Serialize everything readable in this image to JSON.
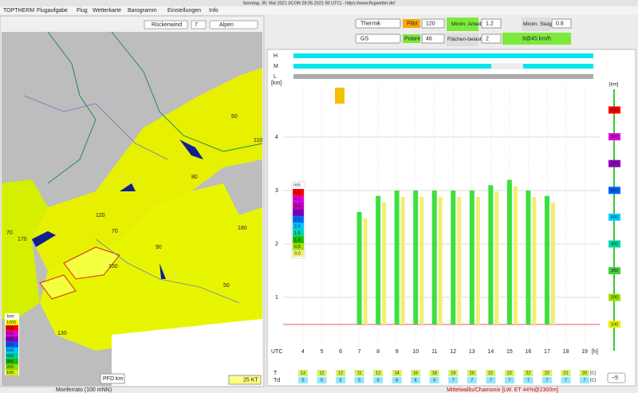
{
  "window_title": "Sonntag, 30. Mai 2021 (ICON 28.05.2021 00 UTC) - https://www.flugwetter.de/",
  "menu": [
    "TOPTHERM",
    "Flugaufgabe",
    "Flug",
    "Wetterkarte",
    "Barogramm",
    "Einstellungen",
    "Info"
  ],
  "map_panel": {
    "checkbox": "Rückenwind",
    "number": "7",
    "region": "Alpen",
    "map_labels": [
      "50",
      "110",
      "80",
      "120",
      "70",
      "170",
      "180",
      "150",
      "90",
      "50",
      "130",
      "70"
    ],
    "legend_unit": "km",
    "legend": [
      "1000",
      "900",
      "800",
      "700",
      "600",
      "500",
      "400",
      "300",
      "200",
      "100"
    ],
    "pfd": "PFD",
    "km_button": "km",
    "wind_scale": "25 KT",
    "status": "Monferrato (100 mNN)"
  },
  "forecast_panel": {
    "mode": "Thermik",
    "pilot": "Pilot",
    "pilot_value": "120",
    "min_work_label": "Minim. Arbeitsh.",
    "min_work": "1.2",
    "min_climb_label": "Minim. Steigen",
    "min_climb": "0.8",
    "glider": "GS",
    "polar": "Polare",
    "polar_value": "46",
    "wing_loading_label": "Flächen-belastung",
    "wing_loading": "2",
    "best_glide": "9@45 km/h",
    "cloud_rows": [
      "H",
      "M",
      "L"
    ],
    "y_unit": "[km]",
    "yticks": [
      1,
      2,
      3,
      4
    ],
    "utc": "UTC",
    "hours": [
      4,
      5,
      6,
      7,
      8,
      9,
      10,
      11,
      12,
      13,
      14,
      15,
      16,
      17,
      18,
      19
    ],
    "x_unit": "[h]",
    "scale_unit": "[km]",
    "scale": [
      900,
      800,
      700,
      600,
      500,
      400,
      300,
      200,
      100
    ],
    "climb_unit": "m/s",
    "climb_scale": [
      "4.5",
      "4.0",
      "3.5",
      "3.0",
      "2.5",
      "2.0",
      "1.5",
      "1.0",
      "0.5",
      "0.0"
    ],
    "column_hours": [
      7,
      8,
      9,
      10,
      11,
      12,
      13,
      14,
      15,
      16,
      17
    ],
    "column_tops": [
      2.6,
      2.9,
      3.0,
      3.0,
      3.0,
      3.0,
      3.0,
      3.1,
      3.2,
      3.0,
      2.9
    ],
    "T_label": "T",
    "Td_label": "Td",
    "temp_unit": "[C]",
    "T": [
      13,
      12,
      12,
      11,
      12,
      14,
      16,
      18,
      19,
      20,
      21,
      22,
      22,
      22,
      21,
      20
    ],
    "Td": [
      5,
      5,
      5,
      5,
      5,
      6,
      6,
      6,
      7,
      7,
      7,
      7,
      7,
      7,
      7,
      7
    ],
    "time_select": "~5",
    "status": "Mittelwallis/Chamonix [LW. ET 44%@2300m]"
  }
}
